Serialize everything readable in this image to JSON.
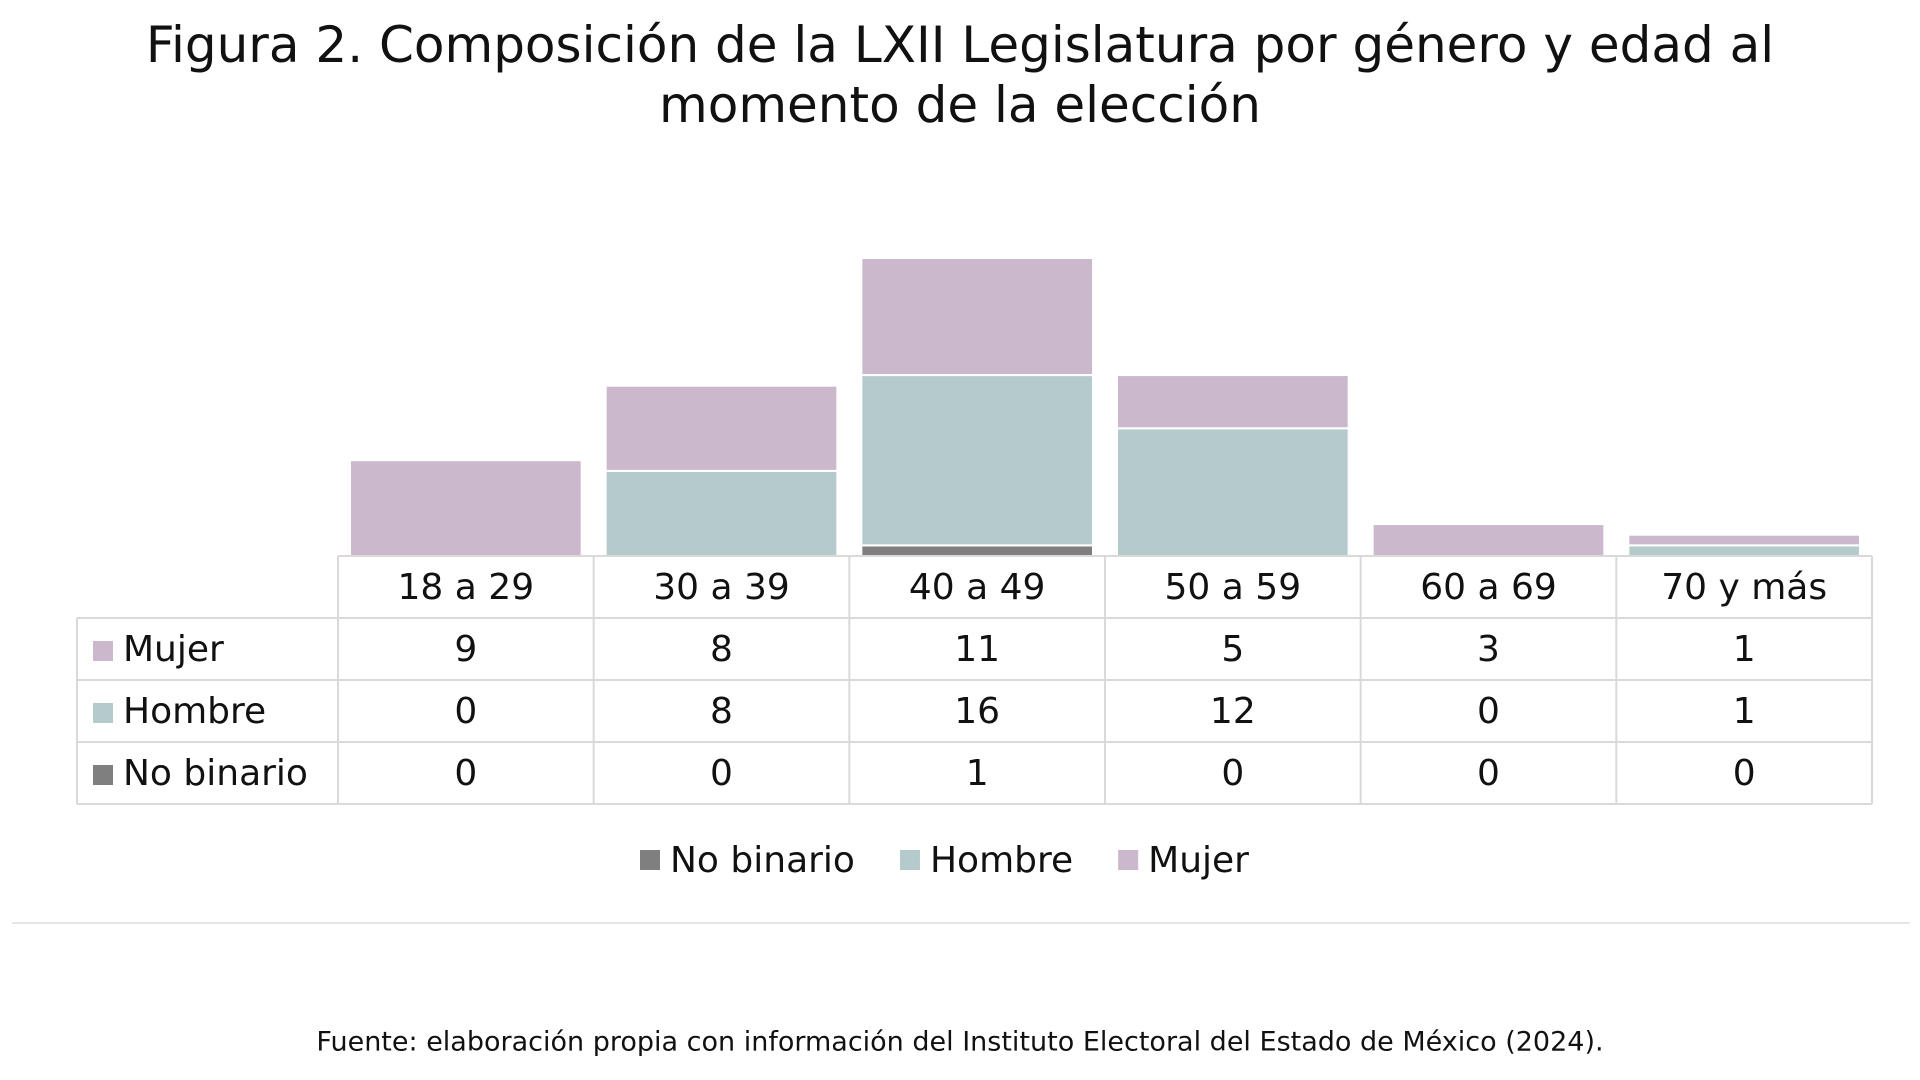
{
  "chart_data": {
    "type": "stacked-bar-table",
    "title": "Figura 2. Composición de la LXII Legislatura por género y edad al momento de la elección",
    "categories": [
      "18 a 29",
      "30 a 39",
      "40 a 49",
      "50 a 59",
      "60 a 69",
      "70 y más"
    ],
    "series": [
      {
        "name": "Mujer",
        "color": "#cbb8cd",
        "values": [
          9,
          8,
          11,
          5,
          3,
          1
        ]
      },
      {
        "name": "Hombre",
        "color": "#b5cacb",
        "values": [
          0,
          8,
          16,
          12,
          0,
          1
        ]
      },
      {
        "name": "No binario",
        "color": "#7f7f7f",
        "values": [
          0,
          0,
          1,
          0,
          0,
          0
        ]
      }
    ],
    "source": "Fuente: elaboración propia con información del Instituto Electoral del Estado de México (2024)."
  }
}
